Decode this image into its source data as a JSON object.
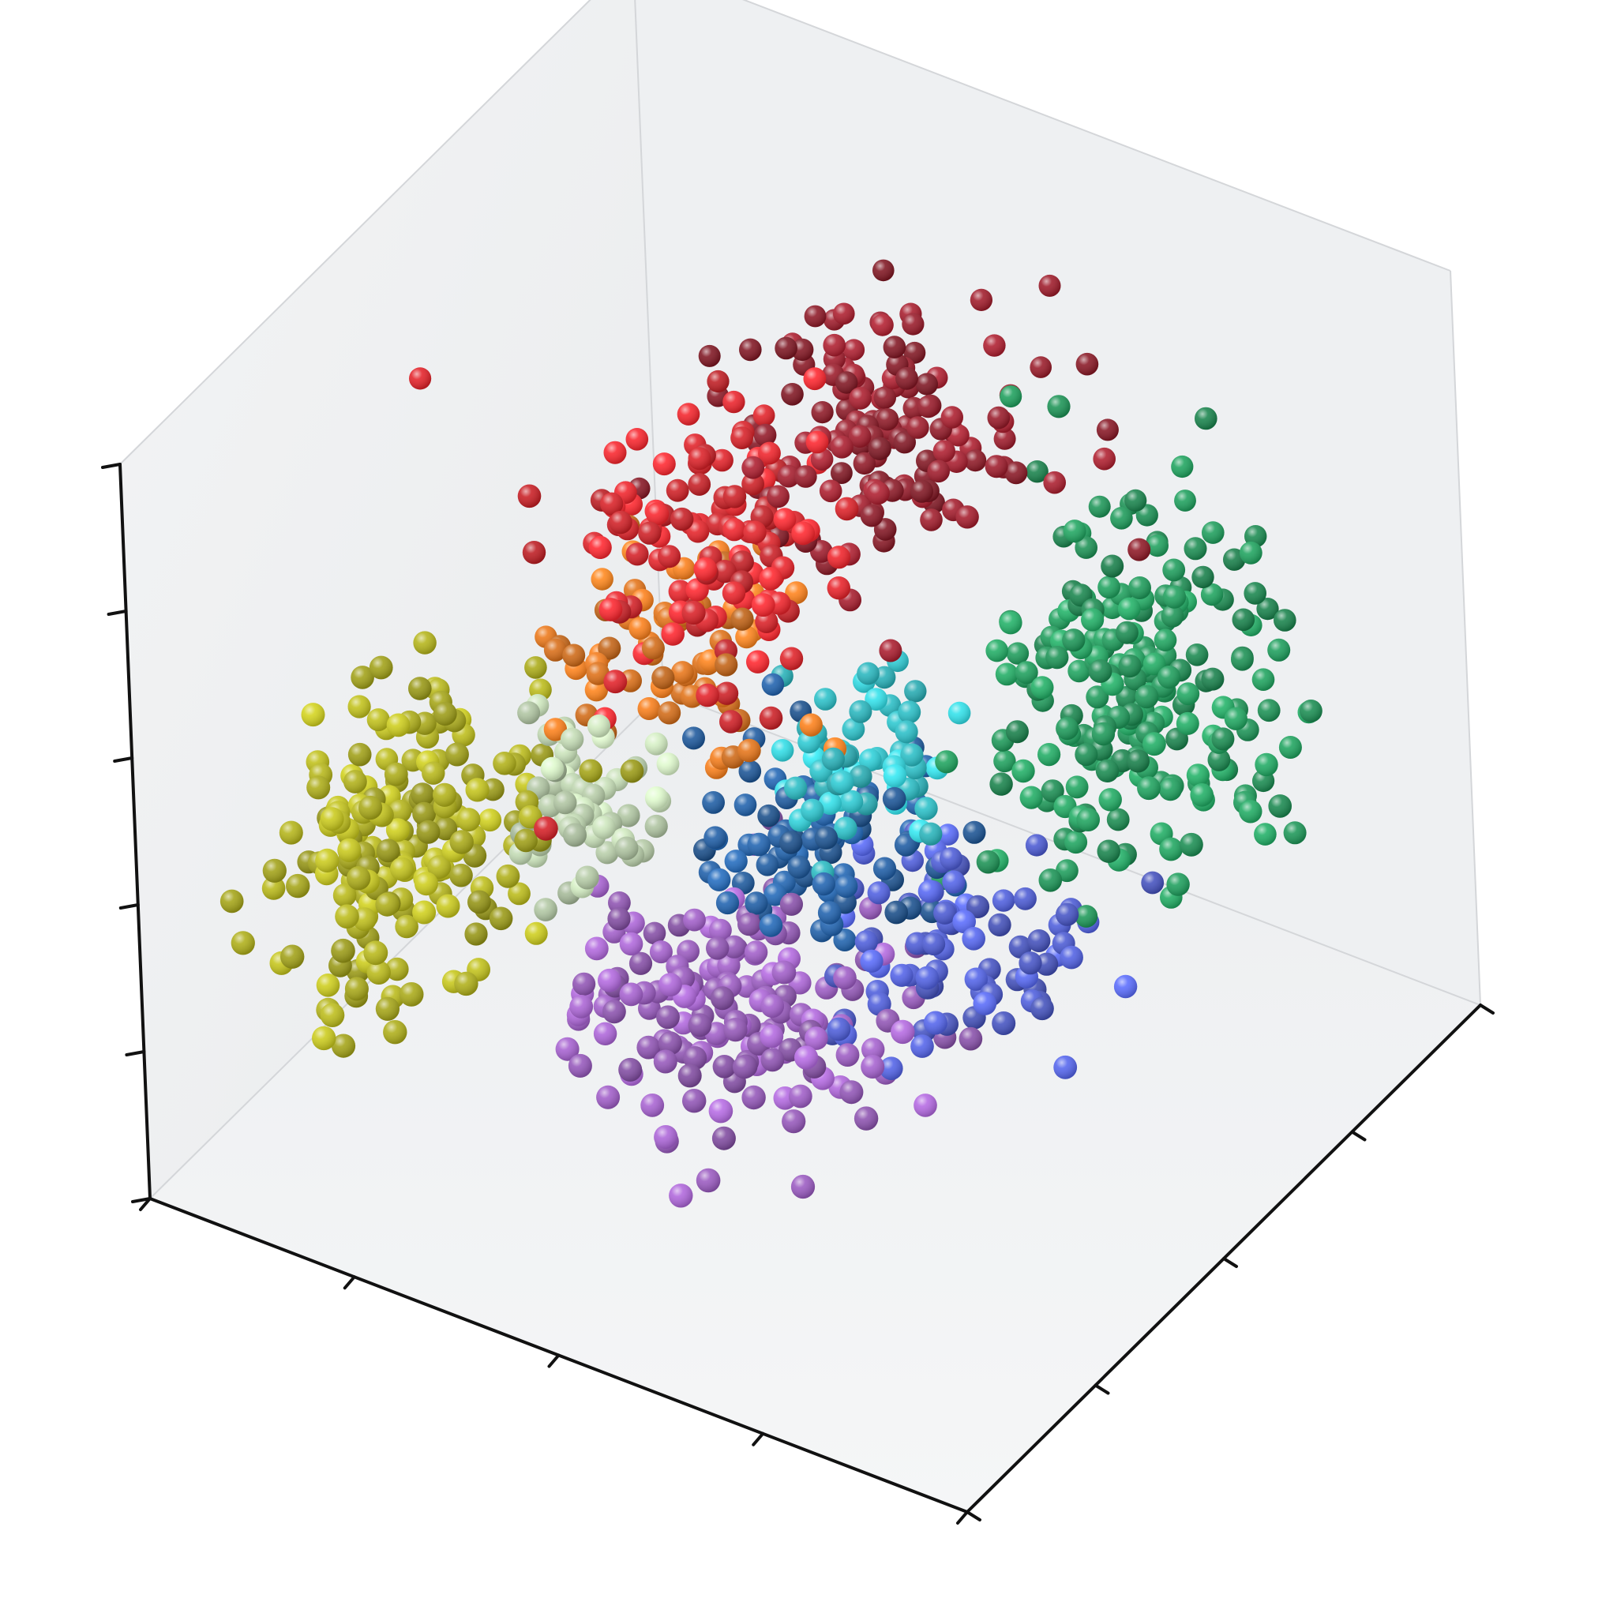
{
  "chart_data": {
    "type": "scatter",
    "projection": "3d",
    "title": "",
    "xlabel": "",
    "ylabel": "",
    "zlabel": "",
    "grid": false,
    "legend": "none",
    "tick_labels": "none",
    "xlim": [
      0,
      10
    ],
    "ylim": [
      0,
      10
    ],
    "zlim": [
      0,
      10
    ],
    "marker": "sphere",
    "series": [
      {
        "color": "#9c1b2a",
        "center": [
          5.2,
          6.5,
          8.2
        ],
        "spread": [
          1.0,
          1.0,
          1.0
        ],
        "count": 140
      },
      {
        "color": "#e8232a",
        "center": [
          4.3,
          4.5,
          7.6
        ],
        "spread": [
          1.1,
          1.0,
          0.9
        ],
        "count": 120
      },
      {
        "color": "#f07a1a",
        "center": [
          3.8,
          4.5,
          5.9
        ],
        "spread": [
          0.9,
          0.8,
          0.8
        ],
        "count": 70
      },
      {
        "color": "#b8b81a",
        "center": [
          2.0,
          2.0,
          4.4
        ],
        "spread": [
          0.8,
          1.1,
          1.2
        ],
        "count": 190
      },
      {
        "color": "#c8e0b8",
        "center": [
          3.3,
          3.4,
          4.5
        ],
        "spread": [
          0.6,
          0.6,
          0.6
        ],
        "count": 60
      },
      {
        "color": "#1e9e5c",
        "center": [
          7.8,
          7.2,
          5.4
        ],
        "spread": [
          1.0,
          1.1,
          1.3
        ],
        "count": 220
      },
      {
        "color": "#2ecfd8",
        "center": [
          5.5,
          5.3,
          4.7
        ],
        "spread": [
          0.7,
          0.7,
          0.6
        ],
        "count": 60
      },
      {
        "color": "#1f5fa8",
        "center": [
          5.0,
          5.3,
          3.4
        ],
        "spread": [
          0.9,
          0.8,
          0.7
        ],
        "count": 85
      },
      {
        "color": "#a05ec8",
        "center": [
          4.7,
          3.9,
          1.9
        ],
        "spread": [
          1.2,
          1.1,
          0.7
        ],
        "count": 170
      },
      {
        "color": "#5060e0",
        "center": [
          6.4,
          5.6,
          2.2
        ],
        "spread": [
          0.9,
          0.9,
          0.7
        ],
        "count": 90
      }
    ]
  }
}
